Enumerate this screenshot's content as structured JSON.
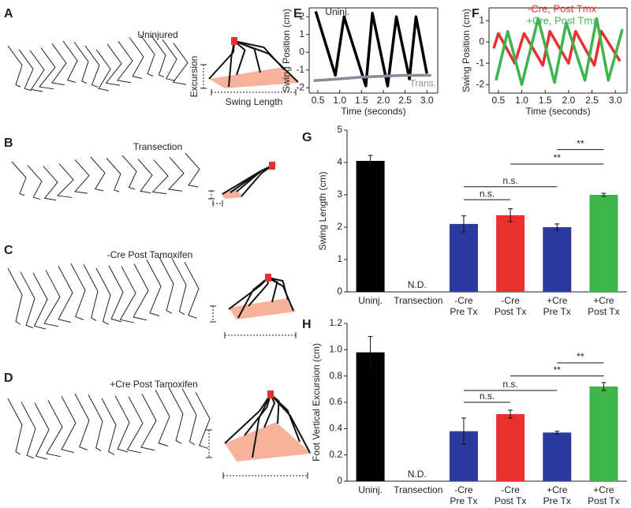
{
  "drawings": [
    {
      "label": "A",
      "title": "Uninjured"
    },
    {
      "label": "B",
      "title": "Transection"
    },
    {
      "label": "C",
      "title": "-Cre Post Tamoxifen"
    },
    {
      "label": "D",
      "title": "+Cre Post Tamoxifen"
    }
  ],
  "drawing_axes": {
    "excursion": "Excursion",
    "swing_length": "Swing Length"
  },
  "chart_data": [
    {
      "type": "line",
      "panel": "E",
      "xlabel": "Time (seconds)",
      "ylabel": "Swing Position (cm)",
      "xlim": [
        0.3,
        3.25
      ],
      "ylim": [
        -2.3,
        2.5
      ],
      "xticks": [
        0.5,
        {
          "value": 1,
          "label": "1.0"
        },
        1.5,
        {
          "value": 2,
          "label": "2.0"
        },
        2.5,
        {
          "value": 3,
          "label": "3.0"
        }
      ],
      "yticks": [
        -2,
        -1,
        0,
        1,
        2
      ],
      "series": [
        {
          "name": "Uninj.",
          "color": "#000000",
          "x": [
            0.45,
            0.9,
            1.1,
            1.6,
            1.75,
            2.1,
            2.3,
            2.6,
            2.75,
            3.0
          ],
          "values": [
            2.3,
            -1.3,
            2.0,
            -1.9,
            2.2,
            -1.9,
            2.0,
            -1.5,
            2.0,
            -1.2
          ]
        },
        {
          "name": "Trans.",
          "color": "#8a8a99",
          "x": [
            0.4,
            1.0,
            1.5,
            2.0,
            2.5,
            3.1
          ],
          "values": [
            -1.6,
            -1.5,
            -1.4,
            -1.35,
            -1.3,
            -1.3
          ]
        }
      ]
    },
    {
      "type": "line",
      "panel": "F",
      "xlabel": "Time (seconds)",
      "ylabel": "Swing Position (cm)",
      "xlim": [
        0.3,
        3.25
      ],
      "ylim": [
        -2.4,
        1.6
      ],
      "xticks": [
        0.5,
        {
          "value": 1,
          "label": "1.0"
        },
        1.5,
        {
          "value": 2,
          "label": "2.0"
        },
        2.5,
        {
          "value": 3,
          "label": "3.0"
        }
      ],
      "yticks": [
        -2,
        -1,
        0,
        1
      ],
      "series": [
        {
          "name": "-Cre, Post Tmx",
          "color": "#e8312f",
          "x": [
            0.4,
            0.5,
            0.85,
            1.05,
            1.45,
            1.6,
            2.0,
            2.15,
            2.55,
            2.7,
            3.1
          ],
          "values": [
            -0.3,
            0.4,
            -1.0,
            0.4,
            -1.1,
            0.5,
            -1.0,
            0.5,
            -1.1,
            0.5,
            -0.9
          ]
        },
        {
          "name": "+Cre, Post Tmx",
          "color": "#3cb54a",
          "x": [
            0.45,
            0.7,
            1.0,
            1.35,
            1.7,
            1.95,
            2.35,
            2.6,
            2.85,
            3.15
          ],
          "values": [
            -1.8,
            0.5,
            -2.0,
            1.1,
            -1.9,
            0.9,
            -1.8,
            1.1,
            -1.8,
            0.6
          ]
        }
      ]
    },
    {
      "type": "bar",
      "panel": "G",
      "ylabel": "Swing Length (cm)",
      "categories": [
        "Uninj.",
        "Transection",
        "-Cre\nPre Tx",
        "-Cre\nPost Tx",
        "+Cre\nPre Tx",
        "+Cre\nPost Tx"
      ],
      "values": [
        4.05,
        null,
        2.1,
        2.37,
        2.0,
        3.0
      ],
      "errors": [
        0.17,
        null,
        0.25,
        0.2,
        0.1,
        0.05
      ],
      "colors": [
        "#000000",
        null,
        "#2b3a9e",
        "#e8312f",
        "#2b3a9e",
        "#3cb54a"
      ],
      "nd_label": "N.D.",
      "ylim": [
        0,
        5
      ],
      "yticks": [
        0,
        1,
        2,
        3,
        4,
        5
      ],
      "comparisons": [
        {
          "from": 2,
          "to": 3,
          "y": 2.85,
          "label": "n.s."
        },
        {
          "from": 2,
          "to": 4,
          "y": 3.25,
          "label": "n.s."
        },
        {
          "from": 3,
          "to": 5,
          "y": 3.95,
          "label": "**"
        },
        {
          "from": 4,
          "to": 5,
          "y": 4.4,
          "label": "**"
        }
      ]
    },
    {
      "type": "bar",
      "panel": "H",
      "ylabel": "Foot Vertical Excursion (cm)",
      "categories": [
        "Uninj.",
        "Transection",
        "-Cre\nPre Tx",
        "-Cre\nPost Tx",
        "+Cre\nPre Tx",
        "+Cre\nPost Tx"
      ],
      "values": [
        0.98,
        null,
        0.38,
        0.51,
        0.37,
        0.72
      ],
      "errors": [
        0.12,
        null,
        0.1,
        0.03,
        0.01,
        0.03
      ],
      "colors": [
        "#000000",
        null,
        "#2b3a9e",
        "#e8312f",
        "#2b3a9e",
        "#3cb54a"
      ],
      "nd_label": "N.D.",
      "ylim": [
        0,
        1.2
      ],
      "yticks": [
        0,
        0.2,
        0.4,
        0.6,
        0.8,
        {
          "value": 1,
          "label": "1.0"
        },
        1.2
      ],
      "comparisons": [
        {
          "from": 2,
          "to": 3,
          "y": 0.6,
          "label": "n.s."
        },
        {
          "from": 2,
          "to": 4,
          "y": 0.69,
          "label": "n.s."
        },
        {
          "from": 3,
          "to": 5,
          "y": 0.8,
          "label": "**"
        },
        {
          "from": 4,
          "to": 5,
          "y": 0.9,
          "label": "**"
        }
      ]
    }
  ]
}
